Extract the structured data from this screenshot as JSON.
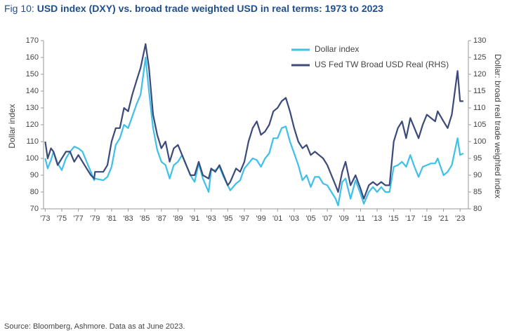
{
  "figure_label": "Fig 10:",
  "chart_data": {
    "type": "line",
    "title": "USD index (DXY) vs. broad trade weighted USD in real terms: 1973 to 2023",
    "y_label": "Dollar index",
    "y2_label": "Dollar: broad real trade weighted index",
    "source": "Source: Bloomberg, Ashmore. Data as at June 2023.",
    "legend": "upper right",
    "grid": false,
    "x": [
      1973,
      1973.3,
      1973.7,
      1974,
      1974.5,
      1975,
      1975.5,
      1976,
      1976.5,
      1977,
      1977.5,
      1978,
      1978.5,
      1978.9,
      1979,
      1980,
      1980.5,
      1981,
      1981.5,
      1982,
      1982.5,
      1983,
      1983.5,
      1984,
      1984.5,
      1985.1,
      1985.5,
      1986,
      1986.5,
      1987,
      1987.5,
      1988,
      1988.5,
      1989,
      1989.5,
      1990,
      1990.5,
      1991,
      1991.5,
      1992,
      1992.7,
      1993,
      1993.5,
      1994,
      1994.5,
      1995,
      1995.3,
      1996,
      1996.5,
      1997,
      1997.5,
      1998,
      1998.5,
      1999,
      1999.5,
      2000,
      2000.5,
      2001,
      2001.5,
      2002,
      2002.5,
      2003,
      2003.5,
      2004,
      2004.5,
      2005,
      2005.5,
      2006,
      2006.5,
      2007,
      2007.5,
      2008,
      2008.3,
      2008.8,
      2009.2,
      2009.8,
      2010.4,
      2011,
      2011.4,
      2012,
      2012.5,
      2013,
      2013.5,
      2014,
      2014.5,
      2015,
      2015.5,
      2016,
      2016.5,
      2017,
      2017.5,
      2018,
      2018.5,
      2019,
      2019.5,
      2020,
      2020.3,
      2021,
      2021.5,
      2022,
      2022.7,
      2023,
      2023.4
    ],
    "series": [
      {
        "name": "Dollar index",
        "color": "#3ec0e8",
        "axis": "y",
        "values": [
          100,
          94,
          99,
          104,
          97,
          93,
          100,
          104,
          107,
          106,
          104,
          98,
          92,
          87,
          88,
          87,
          89,
          95,
          108,
          112,
          120,
          118,
          125,
          132,
          138,
          160,
          140,
          118,
          105,
          98,
          96,
          88,
          96,
          98,
          102,
          96,
          90,
          86,
          97,
          88,
          80,
          93,
          93,
          95,
          89,
          84,
          81,
          85,
          87,
          94,
          97,
          100,
          99,
          95,
          100,
          103,
          112,
          112,
          118,
          119,
          110,
          103,
          96,
          87,
          90,
          83,
          89,
          89,
          85,
          84,
          80,
          76,
          72,
          86,
          88,
          76,
          87,
          79,
          73,
          80,
          83,
          80,
          83,
          80,
          80,
          95,
          96,
          98,
          95,
          102,
          95,
          89,
          95,
          96,
          97,
          97,
          100,
          90,
          92,
          96,
          112,
          102,
          103
        ]
      },
      {
        "name": "US Fed TW Broad USD Real (RHS)",
        "color": "#3b4a7a",
        "axis": "y2",
        "values": [
          100,
          95,
          98,
          97,
          93,
          95,
          97,
          97,
          94,
          96,
          94,
          92,
          90,
          89,
          91,
          91,
          93,
          100,
          104,
          104,
          110,
          109,
          114,
          118,
          122,
          129,
          122,
          108,
          102,
          98,
          100,
          94,
          98,
          99,
          96,
          93,
          90,
          90,
          94,
          90,
          89,
          92,
          91,
          93,
          90,
          87,
          88,
          92,
          91,
          94,
          100,
          104,
          106,
          102,
          103,
          105,
          109,
          110,
          112,
          113,
          109,
          104,
          100,
          98,
          99,
          96,
          97,
          96,
          95,
          93,
          90,
          87,
          85,
          91,
          94,
          87,
          90,
          86,
          83,
          87,
          88,
          87,
          88,
          87,
          87,
          100,
          104,
          106,
          101,
          107,
          104,
          101,
          105,
          108,
          107,
          106,
          109,
          106,
          104,
          108,
          121,
          112,
          112
        ]
      }
    ],
    "xlim": [
      1972.8,
      2024
    ],
    "xticks": [
      {
        "value": 1973,
        "label": "'73"
      },
      {
        "value": 1975,
        "label": "'75"
      },
      {
        "value": 1977,
        "label": "'77"
      },
      {
        "value": 1979,
        "label": "'79"
      },
      {
        "value": 1981,
        "label": "'81"
      },
      {
        "value": 1983,
        "label": "'83"
      },
      {
        "value": 1985,
        "label": "'85"
      },
      {
        "value": 1987,
        "label": "'87"
      },
      {
        "value": 1989,
        "label": "'89"
      },
      {
        "value": 1991,
        "label": "'91"
      },
      {
        "value": 1993,
        "label": "'93"
      },
      {
        "value": 1995,
        "label": "'95"
      },
      {
        "value": 1997,
        "label": "'97"
      },
      {
        "value": 1999,
        "label": "'99"
      },
      {
        "value": 2001,
        "label": "'01"
      },
      {
        "value": 2003,
        "label": "'03"
      },
      {
        "value": 2005,
        "label": "'05"
      },
      {
        "value": 2007,
        "label": "'07"
      },
      {
        "value": 2009,
        "label": "'09"
      },
      {
        "value": 2011,
        "label": "'11"
      },
      {
        "value": 2013,
        "label": "'13"
      },
      {
        "value": 2015,
        "label": "'15"
      },
      {
        "value": 2017,
        "label": "'17"
      },
      {
        "value": 2019,
        "label": "'19"
      },
      {
        "value": 2021,
        "label": "'21"
      },
      {
        "value": 2023,
        "label": "'23"
      }
    ],
    "ylim": [
      70,
      170
    ],
    "yticks": [
      70,
      80,
      90,
      100,
      110,
      120,
      130,
      140,
      150,
      160,
      170
    ],
    "y2lim": [
      80,
      130
    ],
    "y2ticks": [
      80,
      85,
      90,
      95,
      100,
      105,
      110,
      115,
      120,
      125,
      130
    ]
  }
}
